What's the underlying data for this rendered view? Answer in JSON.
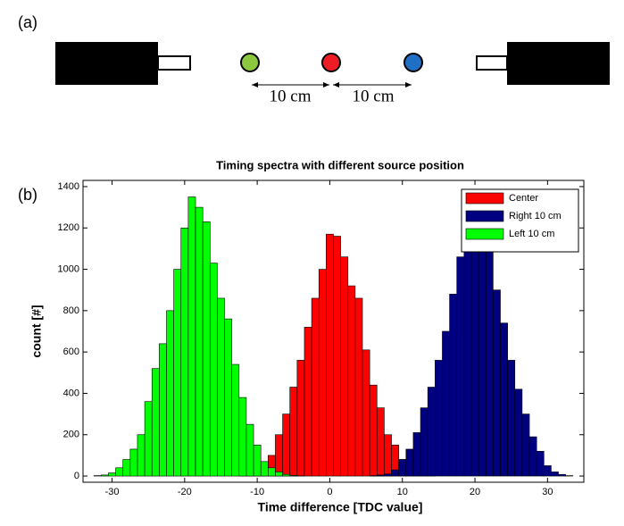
{
  "panel_labels": [
    "(a)",
    "(b)"
  ],
  "diagram": {
    "distances": [
      "10 cm",
      "10 cm"
    ]
  },
  "chart_data": {
    "type": "histogram",
    "title": "Timing spectra with different source position",
    "x_label": "Time difference [TDC value]",
    "y_label": "count [#]",
    "bins": [
      -33.5,
      -32.5,
      -31.5,
      -30.5,
      -29.5,
      -28.5,
      -27.5,
      -26.5,
      -25.5,
      -24.5,
      -23.5,
      -22.5,
      -21.5,
      -20.5,
      -19.5,
      -18.5,
      -17.5,
      -16.5,
      -15.5,
      -14.5,
      -13.5,
      -12.5,
      -11.5,
      -10.5,
      -9.5,
      -8.5,
      -7.5,
      -6.5,
      -5.5,
      -4.5,
      -3.5,
      -2.5,
      -1.5,
      -0.5,
      0.5,
      1.5,
      2.5,
      3.5,
      4.5,
      5.5,
      6.5,
      7.5,
      8.5,
      9.5,
      10.5,
      11.5,
      12.5,
      13.5,
      14.5,
      15.5,
      16.5,
      17.5,
      18.5,
      19.5,
      20.5,
      21.5,
      22.5,
      23.5,
      24.5,
      25.5,
      26.5,
      27.5,
      28.5,
      29.5,
      30.5,
      31.5,
      32.5,
      33.5
    ],
    "series": [
      {
        "name": "Center",
        "color": "#ff0000",
        "values": [
          0,
          0,
          0,
          0,
          0,
          0,
          0,
          0,
          0,
          0,
          0,
          0,
          0,
          0,
          0,
          0,
          0,
          0,
          0,
          0,
          0,
          2,
          5,
          20,
          60,
          100,
          200,
          300,
          430,
          560,
          720,
          860,
          1000,
          1170,
          1160,
          1060,
          920,
          860,
          610,
          440,
          330,
          200,
          150,
          80,
          40,
          15,
          5,
          1,
          0,
          0,
          0,
          0,
          0,
          0,
          0,
          0,
          0,
          0,
          0,
          0,
          0,
          0,
          0,
          0,
          0,
          0,
          0
        ]
      },
      {
        "name": "Right 10 cm",
        "color": "#000080",
        "values": [
          0,
          0,
          0,
          0,
          0,
          0,
          0,
          0,
          0,
          0,
          0,
          0,
          0,
          0,
          0,
          0,
          0,
          0,
          0,
          0,
          0,
          0,
          0,
          0,
          0,
          0,
          0,
          0,
          0,
          0,
          0,
          0,
          0,
          0,
          0,
          0,
          0,
          0,
          0,
          2,
          5,
          10,
          30,
          80,
          130,
          210,
          330,
          430,
          560,
          700,
          880,
          1060,
          1380,
          1320,
          1290,
          1120,
          900,
          740,
          560,
          420,
          300,
          190,
          120,
          50,
          20,
          8,
          2
        ]
      },
      {
        "name": "Left 10 cm",
        "color": "#00ff00",
        "values": [
          0,
          2,
          5,
          15,
          40,
          80,
          130,
          200,
          360,
          520,
          640,
          800,
          1000,
          1200,
          1350,
          1300,
          1230,
          1030,
          860,
          760,
          540,
          380,
          250,
          150,
          70,
          40,
          20,
          8,
          3,
          1,
          0,
          0,
          0,
          0,
          0,
          0,
          0,
          0,
          0,
          0,
          0,
          0,
          0,
          0,
          0,
          0,
          0,
          0,
          0,
          0,
          0,
          0,
          0,
          0,
          0,
          0,
          0,
          0,
          0,
          0,
          0,
          0,
          0,
          0,
          0,
          0,
          0
        ]
      }
    ],
    "xlim": [
      -34,
      35
    ],
    "ylim": [
      -30,
      1430
    ],
    "xticks": [
      -30,
      -20,
      -10,
      0,
      10,
      20,
      30
    ],
    "yticks": [
      0,
      200,
      400,
      600,
      800,
      1000,
      1200,
      1400
    ],
    "legend": "upper right"
  }
}
